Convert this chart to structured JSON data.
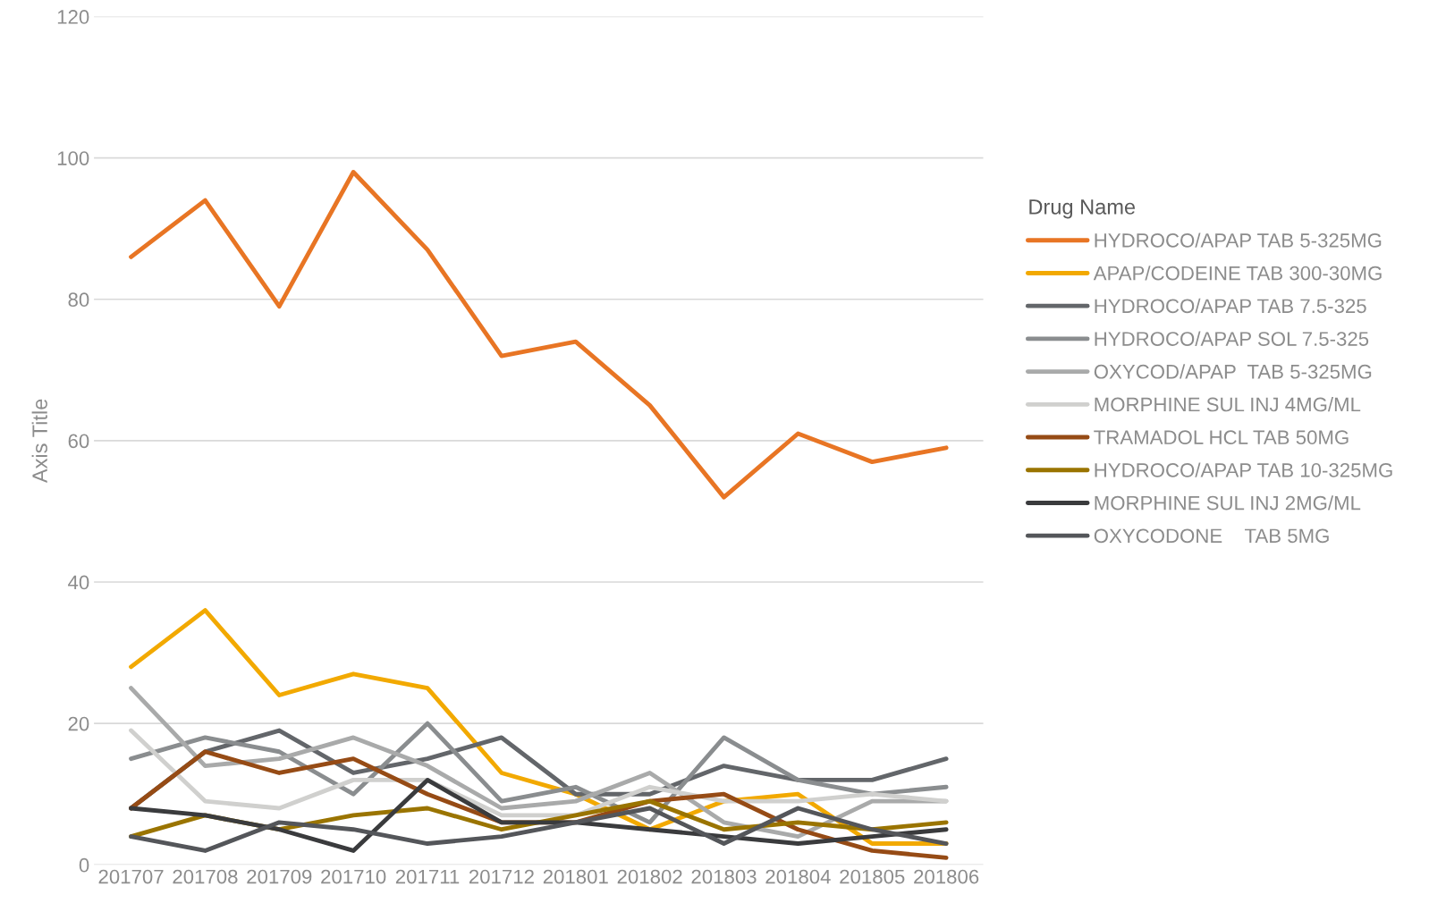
{
  "chart_data": {
    "type": "line",
    "ylabel": "Axis Title",
    "legend_title": "Drug Name",
    "categories": [
      "201707",
      "201708",
      "201709",
      "201710",
      "201711",
      "201712",
      "201801",
      "201802",
      "201803",
      "201804",
      "201805",
      "201806"
    ],
    "series": [
      {
        "name": "HYDROCO/APAP TAB 5-325MG",
        "color": "#e87524",
        "values": [
          86,
          94,
          79,
          98,
          87,
          72,
          74,
          65,
          52,
          61,
          57,
          59
        ]
      },
      {
        "name": "APAP/CODEINE TAB 300-30MG",
        "color": "#f2a900",
        "values": [
          28,
          36,
          24,
          27,
          25,
          13,
          10,
          5,
          9,
          10,
          3,
          3
        ]
      },
      {
        "name": "HYDROCO/APAP TAB 7.5-325",
        "color": "#63666a",
        "values": [
          8,
          16,
          19,
          13,
          15,
          18,
          10,
          10,
          14,
          12,
          12,
          15
        ]
      },
      {
        "name": "HYDROCO/APAP SOL 7.5-325",
        "color": "#8a8d8f",
        "values": [
          15,
          18,
          16,
          10,
          20,
          9,
          11,
          6,
          18,
          12,
          10,
          11
        ]
      },
      {
        "name": "OXYCOD/APAP  TAB 5-325MG",
        "color": "#a9aaaa",
        "values": [
          25,
          14,
          15,
          18,
          14,
          8,
          9,
          13,
          6,
          4,
          9,
          9
        ]
      },
      {
        "name": "MORPHINE SUL INJ 4MG/ML",
        "color": "#d0d0ce",
        "values": [
          19,
          9,
          8,
          12,
          12,
          7,
          7,
          11,
          9,
          9,
          10,
          9
        ]
      },
      {
        "name": "TRAMADOL HCL TAB 50MG",
        "color": "#964b15",
        "values": [
          8,
          16,
          13,
          15,
          10,
          6,
          6,
          9,
          10,
          5,
          2,
          1
        ]
      },
      {
        "name": "HYDROCO/APAP TAB 10-325MG",
        "color": "#9a7400",
        "values": [
          4,
          7,
          5,
          7,
          8,
          5,
          7,
          9,
          5,
          6,
          5,
          6
        ]
      },
      {
        "name": "MORPHINE SUL INJ 2MG/ML",
        "color": "#3a3b3d",
        "values": [
          8,
          7,
          5,
          2,
          12,
          6,
          6,
          5,
          4,
          3,
          4,
          5
        ]
      },
      {
        "name": "OXYCODONE    TAB 5MG",
        "color": "#54565a",
        "values": [
          4,
          2,
          6,
          5,
          3,
          4,
          6,
          8,
          3,
          8,
          5,
          3
        ]
      }
    ],
    "ylim": [
      0,
      120
    ],
    "yticks": [
      0,
      20,
      40,
      60,
      80,
      100,
      120
    ],
    "grid": "y",
    "legend": "right",
    "line_style": "solid",
    "marker": "none"
  }
}
